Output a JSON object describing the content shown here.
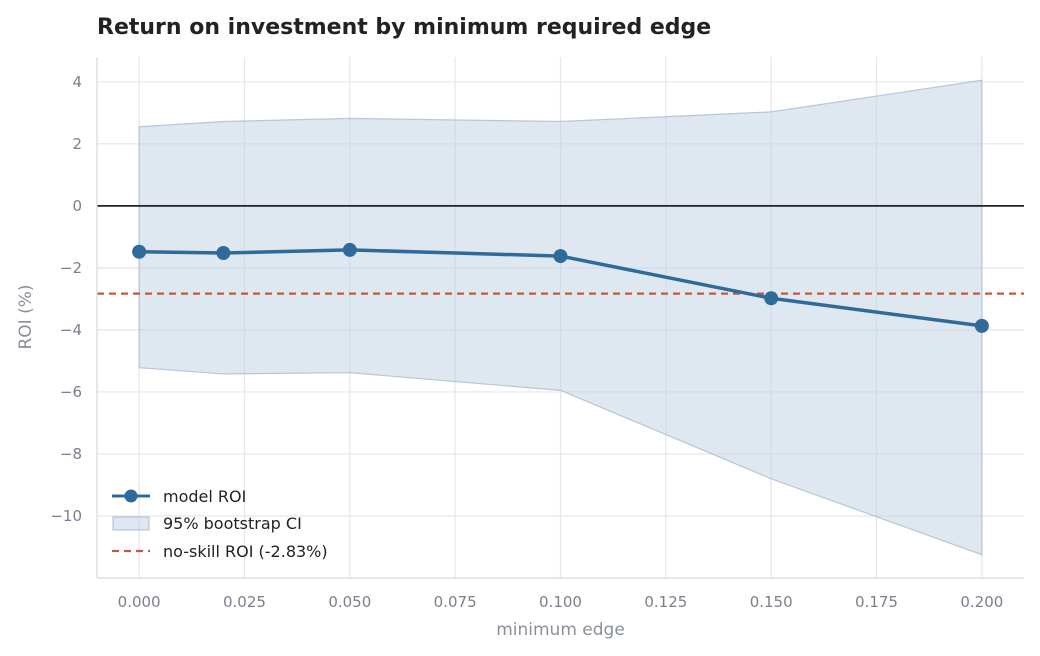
{
  "chart_data": {
    "type": "line",
    "title": "Return on investment by minimum required edge",
    "xlabel": "minimum edge",
    "ylabel": "ROI (%)",
    "xlim": [
      -0.01,
      0.21
    ],
    "ylim": [
      -12.0,
      4.8
    ],
    "x_ticks": [
      0.0,
      0.025,
      0.05,
      0.075,
      0.1,
      0.125,
      0.15,
      0.175,
      0.2
    ],
    "x_tick_labels": [
      "0.000",
      "0.025",
      "0.050",
      "0.075",
      "0.100",
      "0.125",
      "0.150",
      "0.175",
      "0.200"
    ],
    "y_ticks": [
      4,
      2,
      0,
      -2,
      -4,
      -6,
      -8,
      -10
    ],
    "y_tick_labels": [
      "4",
      "2",
      "0",
      "−2",
      "−4",
      "−6",
      "−8",
      "−10"
    ],
    "grid": true,
    "legend_position": "lower-left",
    "x": [
      0.0,
      0.02,
      0.05,
      0.1,
      0.15,
      0.2
    ],
    "series": [
      {
        "name": "model ROI",
        "kind": "line-markers",
        "color": "#2f6b9a",
        "values": [
          -1.48,
          -1.52,
          -1.42,
          -1.62,
          -2.98,
          -3.87
        ]
      },
      {
        "name": "95% bootstrap CI",
        "kind": "band",
        "color": "#c5d4e3",
        "upper": [
          2.55,
          2.72,
          2.82,
          2.72,
          3.03,
          4.05
        ],
        "lower": [
          -5.22,
          -5.42,
          -5.38,
          -5.95,
          -8.8,
          -11.25
        ]
      },
      {
        "name": "no-skill ROI (-2.83%)",
        "kind": "hline",
        "color": "#c45a3c",
        "value": -2.83
      }
    ],
    "reference_line": {
      "value": 0,
      "color": "#222222"
    }
  },
  "colors": {
    "grid": "#e3e6ea",
    "spine": "#d4d7dc",
    "tick_label": "#7a7f8a",
    "axis_label": "#8a8f99",
    "title": "#222222"
  }
}
